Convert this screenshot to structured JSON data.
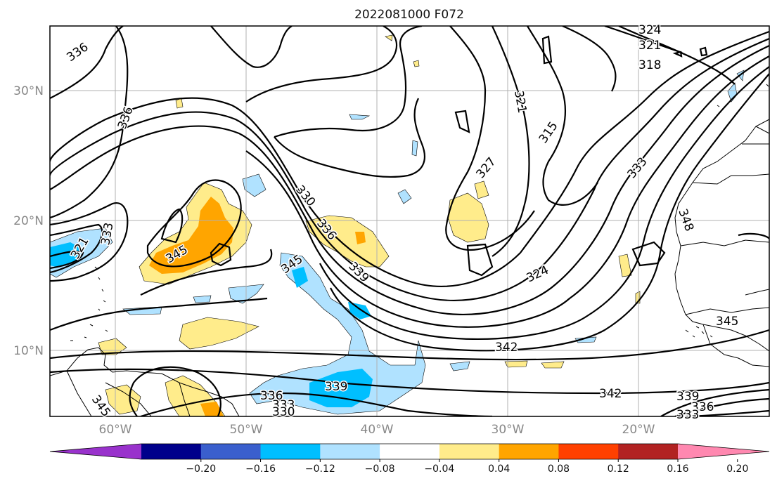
{
  "title": "2022081000 F072",
  "lon_ticks": [
    "60°W",
    "50°W",
    "40°W",
    "30°W",
    "20°W"
  ],
  "lat_ticks": [
    "30°N",
    "20°N",
    "10°N"
  ],
  "colorbar": {
    "ticks": [
      "−0.20",
      "−0.16",
      "−0.12",
      "−0.08",
      "−0.04",
      "0.04",
      "0.08",
      "0.12",
      "0.16",
      "0.20"
    ],
    "colors": [
      "#9932cc",
      "#00008b",
      "#3a5fcd",
      "#00bfff",
      "#b0e2ff",
      "#ffffff",
      "#ffec8b",
      "#ffa500",
      "#ff4000",
      "#b22222",
      "#ff88b0"
    ]
  },
  "contour_labels": [
    "324",
    "321",
    "318",
    "336",
    "336",
    "321",
    "315",
    "327",
    "330",
    "336",
    "339",
    "345",
    "345",
    "333",
    "348",
    "324",
    "342",
    "339",
    "336",
    "333",
    "330",
    "342",
    "339",
    "336",
    "333",
    "345",
    "321",
    "333",
    "345"
  ]
}
